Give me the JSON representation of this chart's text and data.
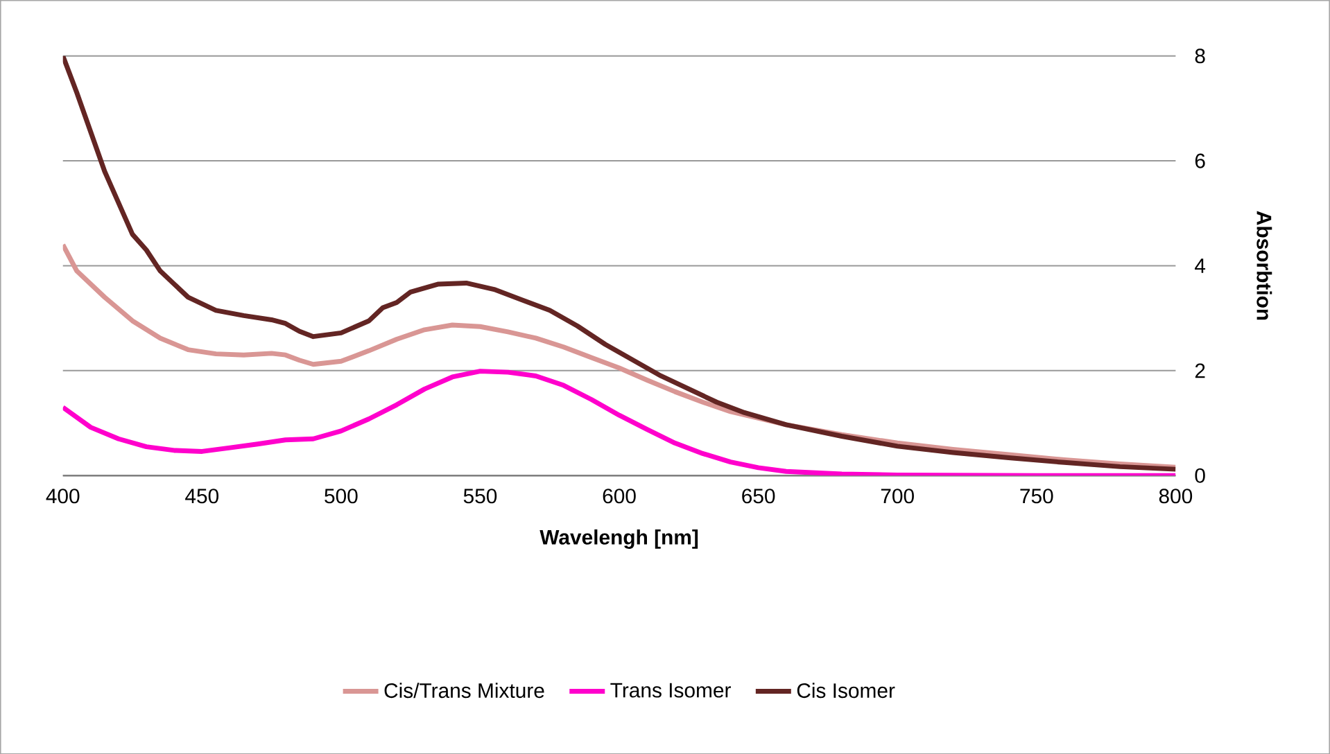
{
  "chart_data": {
    "type": "line",
    "xlabel": "Wavelengh [nm]",
    "ylabel": "Absorbtion",
    "xlim": [
      400,
      800
    ],
    "xticks": [
      400,
      450,
      500,
      550,
      600,
      650,
      700,
      750,
      800
    ],
    "ylim": [
      0,
      8
    ],
    "yticks": [
      0,
      2,
      4,
      6,
      8
    ],
    "grid": "y",
    "legend": "bottom",
    "marker": "none",
    "line_style": "solid",
    "series": [
      {
        "name": "Cis/Trans Mixture",
        "color": "#d99694",
        "x": [
          400,
          405,
          415,
          425,
          435,
          445,
          455,
          465,
          475,
          480,
          485,
          490,
          500,
          510,
          520,
          530,
          540,
          550,
          560,
          570,
          580,
          590,
          600,
          610,
          620,
          630,
          640,
          660,
          680,
          700,
          720,
          740,
          760,
          780,
          800
        ],
        "values": [
          4.4,
          3.9,
          3.4,
          2.95,
          2.62,
          2.4,
          2.32,
          2.3,
          2.33,
          2.3,
          2.2,
          2.12,
          2.18,
          2.38,
          2.6,
          2.78,
          2.87,
          2.84,
          2.74,
          2.62,
          2.45,
          2.25,
          2.05,
          1.82,
          1.6,
          1.4,
          1.22,
          0.97,
          0.78,
          0.62,
          0.5,
          0.4,
          0.3,
          0.22,
          0.16
        ]
      },
      {
        "name": "Trans Isomer",
        "color": "#ff00cc",
        "x": [
          400,
          410,
          420,
          430,
          440,
          450,
          460,
          470,
          480,
          490,
          500,
          510,
          520,
          530,
          540,
          550,
          560,
          570,
          580,
          590,
          600,
          610,
          620,
          630,
          640,
          650,
          660,
          680,
          700,
          750,
          800
        ],
        "values": [
          1.3,
          0.92,
          0.7,
          0.55,
          0.48,
          0.46,
          0.53,
          0.6,
          0.68,
          0.7,
          0.85,
          1.08,
          1.35,
          1.65,
          1.88,
          1.99,
          1.97,
          1.9,
          1.72,
          1.45,
          1.15,
          0.88,
          0.62,
          0.42,
          0.26,
          0.15,
          0.08,
          0.03,
          0.01,
          0,
          0
        ]
      },
      {
        "name": "Cis Isomer",
        "color": "#632523",
        "x": [
          400,
          405,
          415,
          425,
          430,
          435,
          445,
          455,
          465,
          475,
          480,
          485,
          490,
          500,
          510,
          515,
          520,
          525,
          535,
          545,
          555,
          565,
          575,
          585,
          595,
          605,
          615,
          625,
          635,
          645,
          660,
          680,
          700,
          720,
          740,
          760,
          780,
          800
        ],
        "values": [
          8.0,
          7.3,
          5.8,
          4.6,
          4.3,
          3.9,
          3.4,
          3.15,
          3.05,
          2.97,
          2.9,
          2.75,
          2.65,
          2.72,
          2.95,
          3.2,
          3.3,
          3.5,
          3.65,
          3.67,
          3.55,
          3.35,
          3.15,
          2.85,
          2.5,
          2.2,
          1.9,
          1.65,
          1.4,
          1.2,
          0.97,
          0.75,
          0.56,
          0.44,
          0.34,
          0.25,
          0.17,
          0.12
        ]
      }
    ]
  }
}
